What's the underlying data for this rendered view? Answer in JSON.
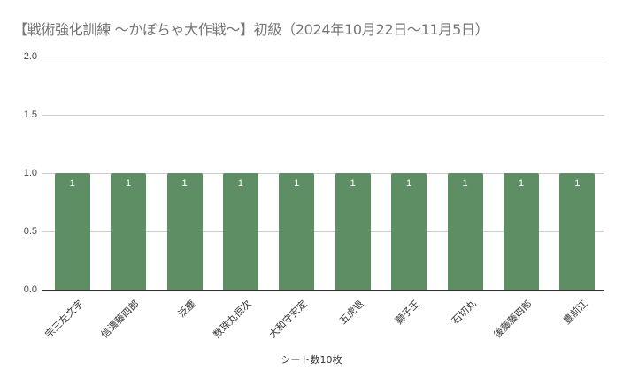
{
  "chart_data": {
    "type": "bar",
    "title": "【戦術強化訓練 ～かぼちゃ大作戦～】初級（2024年10月22日～11月5日）",
    "xlabel": "シート数10枚",
    "ylabel": "",
    "ylim": [
      0,
      2.0
    ],
    "yticks": [
      "0.0",
      "0.5",
      "1.0",
      "1.5",
      "2.0"
    ],
    "grid": true,
    "legend": "none",
    "bar_color": "#5e8e63",
    "categories": [
      "宗三左文字",
      "信濃藤四郎",
      "泛塵",
      "数珠丸恒次",
      "大和守安定",
      "五虎退",
      "獅子王",
      "石切丸",
      "後藤藤四郎",
      "豊前江"
    ],
    "values": [
      1,
      1,
      1,
      1,
      1,
      1,
      1,
      1,
      1,
      1
    ],
    "data_labels": [
      "1",
      "1",
      "1",
      "1",
      "1",
      "1",
      "1",
      "1",
      "1",
      "1"
    ]
  }
}
